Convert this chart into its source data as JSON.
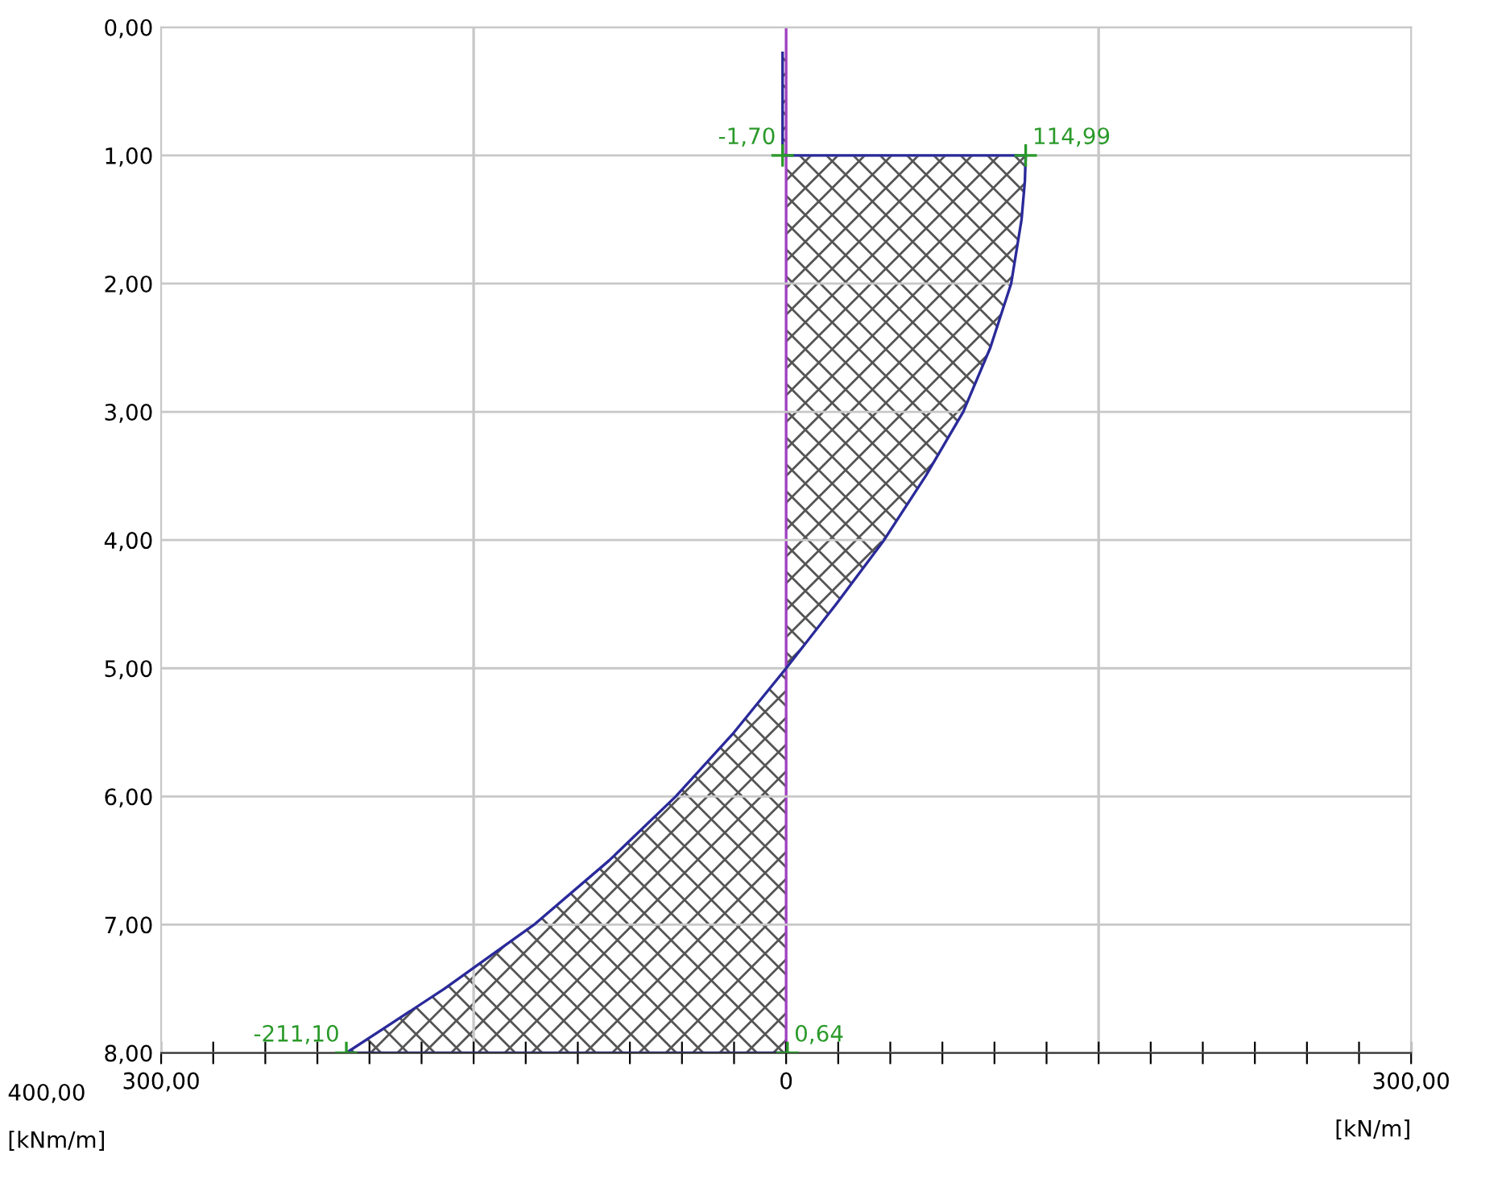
{
  "chart_data": {
    "type": "area",
    "xlabel": "[kN/m]",
    "series": [
      {
        "color": "#2a2a9a",
        "x": [
          -1.7,
          -1.7,
          114.99,
          114.6,
          113,
          108,
          98,
          85,
          67,
          47,
          24,
          0,
          -25,
          -53,
          -85,
          -121,
          -164,
          -211.1,
          0.64
        ],
        "values": [
          0.2,
          1.0,
          1.0,
          1.2,
          1.5,
          2,
          2.5,
          3,
          3.5,
          4,
          4.5,
          5,
          5.5,
          6,
          6.5,
          7,
          7.5,
          8,
          8
        ]
      }
    ],
    "xlim": [
      -300,
      300
    ],
    "xticks": [
      {
        "value": -300,
        "label": "300,00"
      },
      {
        "value": -275,
        "label": null
      },
      {
        "value": -250,
        "label": null
      },
      {
        "value": -225,
        "label": null
      },
      {
        "value": -200,
        "label": null
      },
      {
        "value": -175,
        "label": null
      },
      {
        "value": -150,
        "label": null
      },
      {
        "value": -125,
        "label": null
      },
      {
        "value": -100,
        "label": null
      },
      {
        "value": -75,
        "label": null
      },
      {
        "value": -50,
        "label": null
      },
      {
        "value": -25,
        "label": null
      },
      0,
      {
        "value": 25,
        "label": null
      },
      {
        "value": 50,
        "label": null
      },
      {
        "value": 75,
        "label": null
      },
      {
        "value": 100,
        "label": null
      },
      {
        "value": 125,
        "label": null
      },
      {
        "value": 150,
        "label": null
      },
      {
        "value": 175,
        "label": null
      },
      {
        "value": 200,
        "label": null
      },
      {
        "value": 225,
        "label": null
      },
      {
        "value": 250,
        "label": null
      },
      {
        "value": 275,
        "label": null
      },
      {
        "value": 300,
        "label": "300,00"
      }
    ],
    "ylim": [
      8,
      0
    ],
    "yticks": [
      {
        "value": 0,
        "label": "0,00"
      },
      {
        "value": 1,
        "label": "1,00"
      },
      {
        "value": 2,
        "label": "2,00"
      },
      {
        "value": 3,
        "label": "3,00"
      },
      {
        "value": 4,
        "label": "4,00"
      },
      {
        "value": 5,
        "label": "5,00"
      },
      {
        "value": 6,
        "label": "6,00"
      },
      {
        "value": 7,
        "label": "7,00"
      },
      {
        "value": 8,
        "label": "8,00"
      }
    ],
    "grid": "y",
    "ref_lines": [
      {
        "axis": "x",
        "value": -150,
        "color": "#c8c8c8"
      },
      {
        "axis": "x",
        "value": 0,
        "color": "#a040c0"
      },
      {
        "axis": "x",
        "value": 150,
        "color": "#c8c8c8"
      }
    ],
    "annotations": [
      {
        "text": "-1,70",
        "x": -1.7,
        "y": 1.0
      },
      {
        "text": "114,99",
        "x": 114.99,
        "y": 1.0
      },
      {
        "text": "-211,10",
        "x": -211.1,
        "y": 8
      },
      {
        "text": "0,64",
        "x": 0.64,
        "y": 8
      },
      "400,00",
      "[kNm/m]"
    ]
  }
}
